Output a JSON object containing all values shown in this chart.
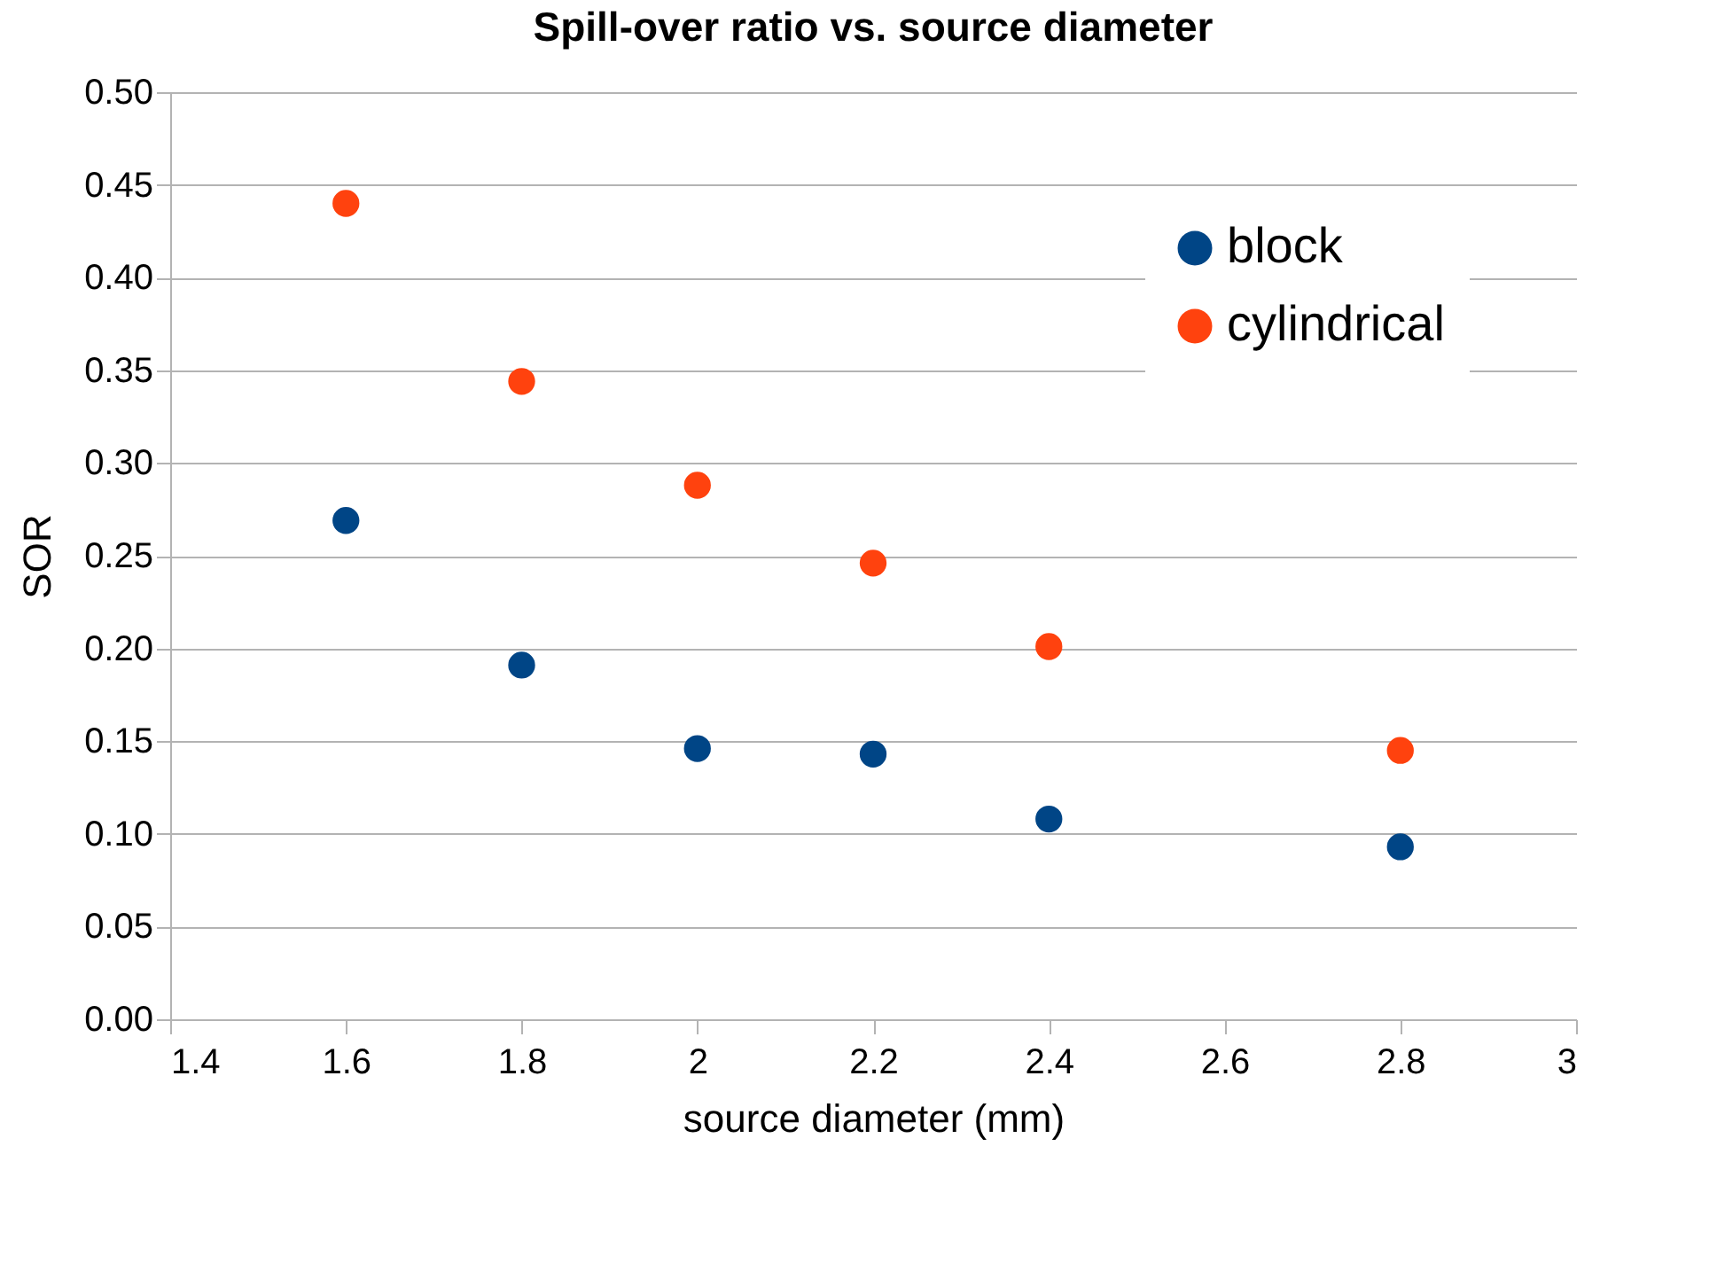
{
  "chart_data": {
    "type": "scatter",
    "title": "Spill-over ratio vs. source diameter",
    "xlabel": "source diameter (mm)",
    "ylabel": "SOR",
    "x": [
      1.6,
      1.8,
      2.0,
      2.2,
      2.4,
      2.8
    ],
    "series": [
      {
        "name": "block",
        "color": "#004586",
        "values": [
          0.269,
          0.191,
          0.146,
          0.143,
          0.108,
          0.093
        ]
      },
      {
        "name": "cylindrical",
        "color": "#ff420e",
        "values": [
          0.44,
          0.344,
          0.288,
          0.246,
          0.201,
          0.145
        ]
      }
    ],
    "xlim": [
      1.4,
      3
    ],
    "xticks": [
      1.4,
      1.6,
      1.8,
      2,
      2.2,
      2.4,
      2.6,
      2.8,
      3
    ],
    "ylim": [
      0,
      0.5
    ],
    "yticks": [
      {
        "value": 0,
        "label": "0.00"
      },
      {
        "value": 0.05,
        "label": "0.05"
      },
      {
        "value": 0.1,
        "label": "0.10"
      },
      {
        "value": 0.15,
        "label": "0.15"
      },
      {
        "value": 0.2,
        "label": "0.20"
      },
      {
        "value": 0.25,
        "label": "0.25"
      },
      {
        "value": 0.3,
        "label": "0.30"
      },
      {
        "value": 0.35,
        "label": "0.35"
      },
      {
        "value": 0.4,
        "label": "0.40"
      },
      {
        "value": 0.45,
        "label": "0.45"
      },
      {
        "value": 0.5,
        "label": "0.50"
      }
    ],
    "grid": "y",
    "legend": "top right",
    "marker": "circle"
  }
}
